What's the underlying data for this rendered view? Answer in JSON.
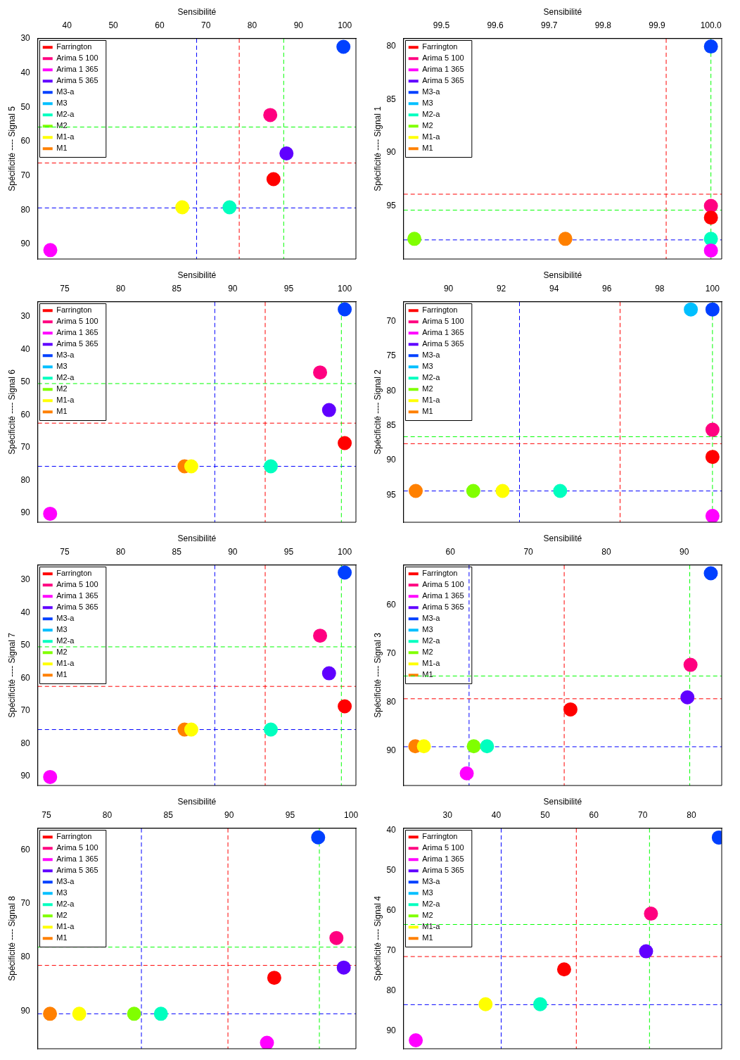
{
  "chart_data": [
    {
      "type": "scatter",
      "xlabel": "Sensibilité",
      "ylabel": "Spécificité ---- Signal 5",
      "legend": "top left",
      "marker": "circle",
      "xlim": [
        33.7,
        102.4
      ],
      "ylim": [
        94.3,
        30
      ],
      "xticks": [
        40,
        50,
        60,
        70,
        80,
        90,
        100
      ],
      "yticks": [
        30,
        40,
        50,
        60,
        70,
        80,
        90
      ],
      "series": [
        {
          "name": "Farrington",
          "color": "#ff0000",
          "x": [
            84.6
          ],
          "values": [
            71.0
          ]
        },
        {
          "name": "Arima 5 100",
          "color": "#ff0080",
          "x": [
            83.9
          ],
          "values": [
            52.3
          ]
        },
        {
          "name": "Arima 1 365",
          "color": "#ff00ff",
          "x": [
            36.4
          ],
          "values": [
            91.7
          ]
        },
        {
          "name": "Arima 5 365",
          "color": "#6000ff",
          "x": [
            87.4
          ],
          "values": [
            63.5
          ]
        },
        {
          "name": "M3-a",
          "color": "#0040ff",
          "x": [
            99.7
          ],
          "values": [
            32.4
          ]
        },
        {
          "name": "M3",
          "color": "#00bfff",
          "x": [
            null
          ],
          "values": [
            null
          ]
        },
        {
          "name": "M2-a",
          "color": "#00ffbf",
          "x": [
            75.1
          ],
          "values": [
            79.2
          ]
        },
        {
          "name": "M2",
          "color": "#80ff00",
          "x": [
            null
          ],
          "values": [
            null
          ]
        },
        {
          "name": "M1-a",
          "color": "#ffff00",
          "x": [
            64.9
          ],
          "values": [
            79.2
          ]
        },
        {
          "name": "M1",
          "color": "#ff8000",
          "x": [
            null
          ],
          "values": [
            null
          ]
        }
      ],
      "ref_lines": [
        {
          "axis": "x",
          "value": 68.0,
          "color": "#0000ff",
          "line_style": "dashed"
        },
        {
          "axis": "y",
          "value": 79.4,
          "color": "#0000ff",
          "line_style": "dashed"
        },
        {
          "axis": "x",
          "value": 77.2,
          "color": "#ff0000",
          "line_style": "dashed"
        },
        {
          "axis": "y",
          "value": 66.3,
          "color": "#ff0000",
          "line_style": "dashed"
        },
        {
          "axis": "x",
          "value": 86.8,
          "color": "#00ff00",
          "line_style": "dashed"
        },
        {
          "axis": "y",
          "value": 55.8,
          "color": "#00ff00",
          "line_style": "dashed"
        }
      ]
    },
    {
      "type": "scatter",
      "xlabel": "Sensibilité",
      "ylabel": "Spécificité ---- Signal 1",
      "legend": "top left",
      "marker": "circle",
      "xlim": [
        99.43,
        100.02
      ],
      "ylim": [
        100,
        79.25
      ],
      "xticks": [
        99.5,
        99.6,
        99.7,
        99.8,
        99.9,
        {
          "value": 100,
          "label": "100.0"
        }
      ],
      "yticks": [
        80,
        85,
        90,
        95
      ],
      "series": [
        {
          "name": "Farrington",
          "color": "#ff0000",
          "x": [
            100
          ],
          "values": [
            96.1
          ]
        },
        {
          "name": "Arima 5 100",
          "color": "#ff0080",
          "x": [
            100
          ],
          "values": [
            95.0
          ]
        },
        {
          "name": "Arima 1 365",
          "color": "#ff00ff",
          "x": [
            100
          ],
          "values": [
            99.2
          ]
        },
        {
          "name": "Arima 5 365",
          "color": "#6000ff",
          "x": [
            null
          ],
          "values": [
            null
          ]
        },
        {
          "name": "M3-a",
          "color": "#0040ff",
          "x": [
            100
          ],
          "values": [
            80.0
          ]
        },
        {
          "name": "M3",
          "color": "#00bfff",
          "x": [
            null
          ],
          "values": [
            null
          ]
        },
        {
          "name": "M2-a",
          "color": "#00ffbf",
          "x": [
            100
          ],
          "values": [
            98.1
          ]
        },
        {
          "name": "M2",
          "color": "#80ff00",
          "x": [
            99.45
          ],
          "values": [
            98.1
          ]
        },
        {
          "name": "M1-a",
          "color": "#ffff00",
          "x": [
            null
          ],
          "values": [
            null
          ]
        },
        {
          "name": "M1",
          "color": "#ff8000",
          "x": [
            99.73
          ],
          "values": [
            98.1
          ]
        }
      ],
      "ref_lines": [
        {
          "axis": "y",
          "value": 98.2,
          "color": "#0000ff",
          "line_style": "dashed"
        },
        {
          "axis": "x",
          "value": 99.917,
          "color": "#ff0000",
          "line_style": "dashed"
        },
        {
          "axis": "y",
          "value": 93.9,
          "color": "#ff0000",
          "line_style": "dashed"
        },
        {
          "axis": "x",
          "value": 100,
          "color": "#00ff00",
          "line_style": "dashed"
        },
        {
          "axis": "y",
          "value": 95.4,
          "color": "#00ff00",
          "line_style": "dashed"
        }
      ]
    },
    {
      "type": "scatter",
      "xlabel": "Sensibilité",
      "ylabel": "Spécificité ---- Signal 6",
      "legend": "top left",
      "marker": "circle",
      "xlim": [
        72.6,
        101.0
      ],
      "ylim": [
        92.8,
        25.4
      ],
      "xticks": [
        75,
        80,
        85,
        90,
        95,
        100
      ],
      "yticks": [
        30,
        40,
        50,
        60,
        70,
        80,
        90
      ],
      "series": [
        {
          "name": "Farrington",
          "color": "#ff0000",
          "x": [
            100
          ],
          "values": [
            68.6
          ]
        },
        {
          "name": "Arima 5 100",
          "color": "#ff0080",
          "x": [
            97.8
          ],
          "values": [
            47.0
          ]
        },
        {
          "name": "Arima 1 365",
          "color": "#ff00ff",
          "x": [
            73.7
          ],
          "values": [
            90.2
          ]
        },
        {
          "name": "Arima 5 365",
          "color": "#6000ff",
          "x": [
            98.6
          ],
          "values": [
            58.5
          ]
        },
        {
          "name": "M3-a",
          "color": "#0040ff",
          "x": [
            100
          ],
          "values": [
            27.7
          ]
        },
        {
          "name": "M3",
          "color": "#00bfff",
          "x": [
            null
          ],
          "values": [
            null
          ]
        },
        {
          "name": "M2-a",
          "color": "#00ffbf",
          "x": [
            93.4
          ],
          "values": [
            75.7
          ]
        },
        {
          "name": "M2",
          "color": "#80ff00",
          "x": [
            null
          ],
          "values": [
            null
          ]
        },
        {
          "name": "M1-a",
          "color": "#ffff00",
          "x": [
            86.3
          ],
          "values": [
            75.7
          ]
        },
        {
          "name": "M1",
          "color": "#ff8000",
          "x": [
            85.7
          ],
          "values": [
            75.7
          ]
        }
      ],
      "ref_lines": [
        {
          "axis": "x",
          "value": 88.4,
          "color": "#0000ff",
          "line_style": "dashed"
        },
        {
          "axis": "y",
          "value": 75.7,
          "color": "#0000ff",
          "line_style": "dashed"
        },
        {
          "axis": "x",
          "value": 92.9,
          "color": "#ff0000",
          "line_style": "dashed"
        },
        {
          "axis": "y",
          "value": 62.5,
          "color": "#ff0000",
          "line_style": "dashed"
        },
        {
          "axis": "x",
          "value": 99.7,
          "color": "#00ff00",
          "line_style": "dashed"
        },
        {
          "axis": "y",
          "value": 50.4,
          "color": "#00ff00",
          "line_style": "dashed"
        }
      ]
    },
    {
      "type": "scatter",
      "xlabel": "Sensibilité",
      "ylabel": "Spécificité ---- Signal 2",
      "legend": "top left",
      "marker": "circle",
      "xlim": [
        88.3,
        100.35
      ],
      "ylim": [
        98.9,
        67.2
      ],
      "xticks": [
        90,
        92,
        94,
        96,
        98,
        100
      ],
      "yticks": [
        70,
        75,
        80,
        85,
        90,
        95
      ],
      "series": [
        {
          "name": "Farrington",
          "color": "#ff0000",
          "x": [
            100
          ],
          "values": [
            89.5
          ]
        },
        {
          "name": "Arima 5 100",
          "color": "#ff0080",
          "x": [
            100
          ],
          "values": [
            85.6
          ]
        },
        {
          "name": "Arima 1 365",
          "color": "#ff00ff",
          "x": [
            100
          ],
          "values": [
            98.0
          ]
        },
        {
          "name": "Arima 5 365",
          "color": "#6000ff",
          "x": [
            null
          ],
          "values": [
            null
          ]
        },
        {
          "name": "M3-a",
          "color": "#0040ff",
          "x": [
            100
          ],
          "values": [
            68.3
          ]
        },
        {
          "name": "M3",
          "color": "#00bfff",
          "x": [
            99.18
          ],
          "values": [
            68.3
          ]
        },
        {
          "name": "M2-a",
          "color": "#00ffbf",
          "x": [
            94.23
          ],
          "values": [
            94.4
          ]
        },
        {
          "name": "M2",
          "color": "#80ff00",
          "x": [
            90.94
          ],
          "values": [
            94.4
          ]
        },
        {
          "name": "M1-a",
          "color": "#ffff00",
          "x": [
            92.05
          ],
          "values": [
            94.4
          ]
        },
        {
          "name": "M1",
          "color": "#ff8000",
          "x": [
            88.76
          ],
          "values": [
            94.4
          ]
        }
      ],
      "ref_lines": [
        {
          "axis": "x",
          "value": 92.69,
          "color": "#0000ff",
          "line_style": "dashed"
        },
        {
          "axis": "y",
          "value": 94.4,
          "color": "#0000ff",
          "line_style": "dashed"
        },
        {
          "axis": "x",
          "value": 96.5,
          "color": "#ff0000",
          "line_style": "dashed"
        },
        {
          "axis": "y",
          "value": 87.6,
          "color": "#ff0000",
          "line_style": "dashed"
        },
        {
          "axis": "x",
          "value": 100,
          "color": "#00ff00",
          "line_style": "dashed"
        },
        {
          "axis": "y",
          "value": 86.6,
          "color": "#00ff00",
          "line_style": "dashed"
        }
      ]
    },
    {
      "type": "scatter",
      "xlabel": "Sensibilité",
      "ylabel": "Spécificité ---- Signal 7",
      "legend": "top left",
      "marker": "circle",
      "xlim": [
        72.6,
        101.0
      ],
      "ylim": [
        92.8,
        25.4
      ],
      "xticks": [
        75,
        80,
        85,
        90,
        95,
        100
      ],
      "yticks": [
        30,
        40,
        50,
        60,
        70,
        80,
        90
      ],
      "series": [
        {
          "name": "Farrington",
          "color": "#ff0000",
          "x": [
            100
          ],
          "values": [
            68.6
          ]
        },
        {
          "name": "Arima 5 100",
          "color": "#ff0080",
          "x": [
            97.8
          ],
          "values": [
            47.0
          ]
        },
        {
          "name": "Arima 1 365",
          "color": "#ff00ff",
          "x": [
            73.7
          ],
          "values": [
            90.2
          ]
        },
        {
          "name": "Arima 5 365",
          "color": "#6000ff",
          "x": [
            98.6
          ],
          "values": [
            58.5
          ]
        },
        {
          "name": "M3-a",
          "color": "#0040ff",
          "x": [
            100
          ],
          "values": [
            27.7
          ]
        },
        {
          "name": "M3",
          "color": "#00bfff",
          "x": [
            null
          ],
          "values": [
            null
          ]
        },
        {
          "name": "M2-a",
          "color": "#00ffbf",
          "x": [
            93.4
          ],
          "values": [
            75.7
          ]
        },
        {
          "name": "M2",
          "color": "#80ff00",
          "x": [
            null
          ],
          "values": [
            null
          ]
        },
        {
          "name": "M1-a",
          "color": "#ffff00",
          "x": [
            86.3
          ],
          "values": [
            75.7
          ]
        },
        {
          "name": "M1",
          "color": "#ff8000",
          "x": [
            85.7
          ],
          "values": [
            75.7
          ]
        }
      ],
      "ref_lines": [
        {
          "axis": "x",
          "value": 88.4,
          "color": "#0000ff",
          "line_style": "dashed"
        },
        {
          "axis": "y",
          "value": 75.7,
          "color": "#0000ff",
          "line_style": "dashed"
        },
        {
          "axis": "x",
          "value": 92.9,
          "color": "#ff0000",
          "line_style": "dashed"
        },
        {
          "axis": "y",
          "value": 62.5,
          "color": "#ff0000",
          "line_style": "dashed"
        },
        {
          "axis": "x",
          "value": 99.7,
          "color": "#00ff00",
          "line_style": "dashed"
        },
        {
          "axis": "y",
          "value": 50.4,
          "color": "#00ff00",
          "line_style": "dashed"
        }
      ]
    },
    {
      "type": "scatter",
      "xlabel": "Sensibilité",
      "ylabel": "Spécificité ---- Signal 3",
      "legend": "top left",
      "marker": "circle",
      "xlim": [
        54.0,
        94.8
      ],
      "ylim": [
        97.2,
        51.7
      ],
      "xticks": [
        60,
        70,
        80,
        90
      ],
      "yticks": [
        60,
        70,
        80,
        90
      ],
      "series": [
        {
          "name": "Farrington",
          "color": "#ff0000",
          "x": [
            75.4
          ],
          "values": [
            81.5
          ]
        },
        {
          "name": "Arima 5 100",
          "color": "#ff0080",
          "x": [
            90.8
          ],
          "values": [
            72.3
          ]
        },
        {
          "name": "Arima 1 365",
          "color": "#ff00ff",
          "x": [
            62.1
          ],
          "values": [
            94.7
          ]
        },
        {
          "name": "Arima 5 365",
          "color": "#6000ff",
          "x": [
            90.4
          ],
          "values": [
            79.0
          ]
        },
        {
          "name": "M3-a",
          "color": "#0040ff",
          "x": [
            93.4
          ],
          "values": [
            53.4
          ]
        },
        {
          "name": "M3",
          "color": "#00bfff",
          "x": [
            null
          ],
          "values": [
            null
          ]
        },
        {
          "name": "M2-a",
          "color": "#00ffbf",
          "x": [
            64.7
          ],
          "values": [
            89.1
          ]
        },
        {
          "name": "M2",
          "color": "#80ff00",
          "x": [
            63.0
          ],
          "values": [
            89.1
          ]
        },
        {
          "name": "M1-a",
          "color": "#ffff00",
          "x": [
            56.6
          ],
          "values": [
            89.1
          ]
        },
        {
          "name": "M1",
          "color": "#ff8000",
          "x": [
            55.5
          ],
          "values": [
            89.1
          ]
        }
      ],
      "ref_lines": [
        {
          "axis": "x",
          "value": 62.4,
          "color": "#0000ff",
          "line_style": "dashed"
        },
        {
          "axis": "y",
          "value": 89.2,
          "color": "#0000ff",
          "line_style": "dashed"
        },
        {
          "axis": "x",
          "value": 74.6,
          "color": "#ff0000",
          "line_style": "dashed"
        },
        {
          "axis": "y",
          "value": 79.3,
          "color": "#ff0000",
          "line_style": "dashed"
        },
        {
          "axis": "x",
          "value": 90.7,
          "color": "#00ff00",
          "line_style": "dashed"
        },
        {
          "axis": "y",
          "value": 74.6,
          "color": "#00ff00",
          "line_style": "dashed"
        }
      ]
    },
    {
      "type": "scatter",
      "xlabel": "Sensibilité",
      "ylabel": "Spécificité ---- Signal 8",
      "legend": "top left",
      "marker": "circle",
      "xlim": [
        74.3,
        100.4
      ],
      "ylim": [
        97,
        56
      ],
      "xticks": [
        75,
        80,
        85,
        90,
        95,
        100
      ],
      "yticks": [
        60,
        70,
        80,
        90
      ],
      "series": [
        {
          "name": "Farrington",
          "color": "#ff0000",
          "x": [
            93.7
          ],
          "values": [
            83.8
          ]
        },
        {
          "name": "Arima 5 100",
          "color": "#ff0080",
          "x": [
            98.8
          ],
          "values": [
            76.4
          ]
        },
        {
          "name": "Arima 1 365",
          "color": "#ff00ff",
          "x": [
            93.1
          ],
          "values": [
            95.9
          ]
        },
        {
          "name": "Arima 5 365",
          "color": "#6000ff",
          "x": [
            99.4
          ],
          "values": [
            81.9
          ]
        },
        {
          "name": "M3-a",
          "color": "#0040ff",
          "x": [
            97.3
          ],
          "values": [
            57.7
          ]
        },
        {
          "name": "M3",
          "color": "#00bfff",
          "x": [
            null
          ],
          "values": [
            null
          ]
        },
        {
          "name": "M2-a",
          "color": "#00ffbf",
          "x": [
            84.4
          ],
          "values": [
            90.5
          ]
        },
        {
          "name": "M2",
          "color": "#80ff00",
          "x": [
            82.2
          ],
          "values": [
            90.5
          ]
        },
        {
          "name": "M1-a",
          "color": "#ffff00",
          "x": [
            77.7
          ],
          "values": [
            90.5
          ]
        },
        {
          "name": "M1",
          "color": "#ff8000",
          "x": [
            75.3
          ],
          "values": [
            90.5
          ]
        }
      ],
      "ref_lines": [
        {
          "axis": "x",
          "value": 82.8,
          "color": "#0000ff",
          "line_style": "dashed"
        },
        {
          "axis": "y",
          "value": 90.5,
          "color": "#0000ff",
          "line_style": "dashed"
        },
        {
          "axis": "x",
          "value": 89.9,
          "color": "#ff0000",
          "line_style": "dashed"
        },
        {
          "axis": "y",
          "value": 81.5,
          "color": "#ff0000",
          "line_style": "dashed"
        },
        {
          "axis": "x",
          "value": 97.4,
          "color": "#00ff00",
          "line_style": "dashed"
        },
        {
          "axis": "y",
          "value": 78.1,
          "color": "#00ff00",
          "line_style": "dashed"
        }
      ]
    },
    {
      "type": "scatter",
      "xlabel": "Sensibilité",
      "ylabel": "Spécificité ---- Signal 4",
      "legend": "top left",
      "marker": "circle",
      "xlim": [
        21.0,
        86.2
      ],
      "ylim": [
        94.5,
        39.5
      ],
      "xticks": [
        30,
        40,
        50,
        60,
        70,
        80
      ],
      "yticks": [
        40,
        50,
        60,
        70,
        80,
        90
      ],
      "series": [
        {
          "name": "Farrington",
          "color": "#ff0000",
          "x": [
            53.9
          ],
          "values": [
            74.7
          ]
        },
        {
          "name": "Arima 5 100",
          "color": "#ff0080",
          "x": [
            71.7
          ],
          "values": [
            60.8
          ]
        },
        {
          "name": "Arima 1 365",
          "color": "#ff00ff",
          "x": [
            23.5
          ],
          "values": [
            92.4
          ]
        },
        {
          "name": "Arima 5 365",
          "color": "#6000ff",
          "x": [
            70.7
          ],
          "values": [
            70.2
          ]
        },
        {
          "name": "M3-a",
          "color": "#0040ff",
          "x": [
            85.6
          ],
          "values": [
            41.8
          ]
        },
        {
          "name": "M3",
          "color": "#00bfff",
          "x": [
            null
          ],
          "values": [
            null
          ]
        },
        {
          "name": "M2-a",
          "color": "#00ffbf",
          "x": [
            49.0
          ],
          "values": [
            83.4
          ]
        },
        {
          "name": "M2",
          "color": "#80ff00",
          "x": [
            null
          ],
          "values": [
            null
          ]
        },
        {
          "name": "M1-a",
          "color": "#ffff00",
          "x": [
            37.8
          ],
          "values": [
            83.4
          ]
        },
        {
          "name": "M1",
          "color": "#ff8000",
          "x": [
            null
          ],
          "values": [
            null
          ]
        }
      ],
      "ref_lines": [
        {
          "axis": "x",
          "value": 41.0,
          "color": "#0000ff",
          "line_style": "dashed"
        },
        {
          "axis": "y",
          "value": 83.5,
          "color": "#0000ff",
          "line_style": "dashed"
        },
        {
          "axis": "x",
          "value": 56.4,
          "color": "#ff0000",
          "line_style": "dashed"
        },
        {
          "axis": "y",
          "value": 71.5,
          "color": "#ff0000",
          "line_style": "dashed"
        },
        {
          "axis": "x",
          "value": 71.4,
          "color": "#00ff00",
          "line_style": "dashed"
        },
        {
          "axis": "y",
          "value": 63.5,
          "color": "#00ff00",
          "line_style": "dashed"
        }
      ]
    }
  ]
}
